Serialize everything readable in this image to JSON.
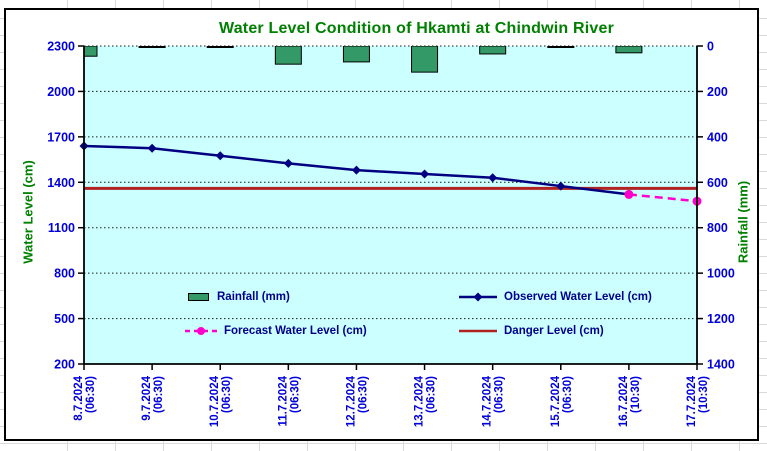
{
  "sheet": {
    "background": "#FFFFFF",
    "gridline_color": "#D9D9D9"
  },
  "chart_box": {
    "background": "#FFFFFF",
    "border_color": "#000000"
  },
  "chart_data": {
    "type": "combo-bar-line",
    "title": "Water Level Condition of Hkamti at Chindwin River",
    "title_color": "#008000",
    "plot_background": "#CCFFFF",
    "grid": {
      "horizontal": true,
      "style": "dotted",
      "color": "#1A1A1A"
    },
    "tick_label_color": "#0000DD",
    "legend_text_color": "#00008B",
    "legend_position": "inside-plot-bottom",
    "categories": [
      "8.7.2024 (06:30)",
      "9.7.2024 (06:30)",
      "10.7.2024 (06:30)",
      "11.7.2024 (06:30)",
      "12.7.2024 (06:30)",
      "13.7.2024 (06:30)",
      "14.7.2024 (06:30)",
      "15.7.2024 (06:30)",
      "16.7.2024 (10:30)",
      "17.7.2024 (10:30)"
    ],
    "left_axis": {
      "title": "Water Level (cm)",
      "title_color": "#008000",
      "min": 200,
      "max": 2300,
      "step": 300,
      "tick_labels": [
        "2300",
        "2000",
        "1700",
        "1400",
        "1100",
        "800",
        "500",
        "200"
      ]
    },
    "right_axis": {
      "title": "Rainfall (mm)",
      "title_color": "#008000",
      "min": 0,
      "max": 1400,
      "step": 200,
      "direction": "down",
      "tick_labels": [
        "0",
        "200",
        "400",
        "600",
        "800",
        "1000",
        "1200",
        "1400"
      ]
    },
    "series": [
      {
        "name": "Rainfall (mm)",
        "type": "bar",
        "axis": "right",
        "color": "#339966",
        "border_color": "#000000",
        "values": [
          45,
          0,
          0,
          80,
          70,
          115,
          35,
          0,
          30,
          null
        ]
      },
      {
        "name": "Observed Water Level (cm)",
        "type": "line",
        "axis": "left",
        "color": "#000080",
        "marker": "diamond",
        "values": [
          1640,
          1625,
          1575,
          1525,
          1480,
          1455,
          1430,
          1375,
          1320,
          null
        ]
      },
      {
        "name": "Forecast Water Level (cm)",
        "type": "line",
        "axis": "left",
        "color": "#FF00CC",
        "marker": "circle",
        "dashed": true,
        "values": [
          null,
          null,
          null,
          null,
          null,
          null,
          null,
          null,
          1320,
          1275
        ]
      },
      {
        "name": "Danger Level (cm)",
        "type": "hline",
        "axis": "left",
        "color": "#B22222",
        "value": 1360
      }
    ]
  }
}
